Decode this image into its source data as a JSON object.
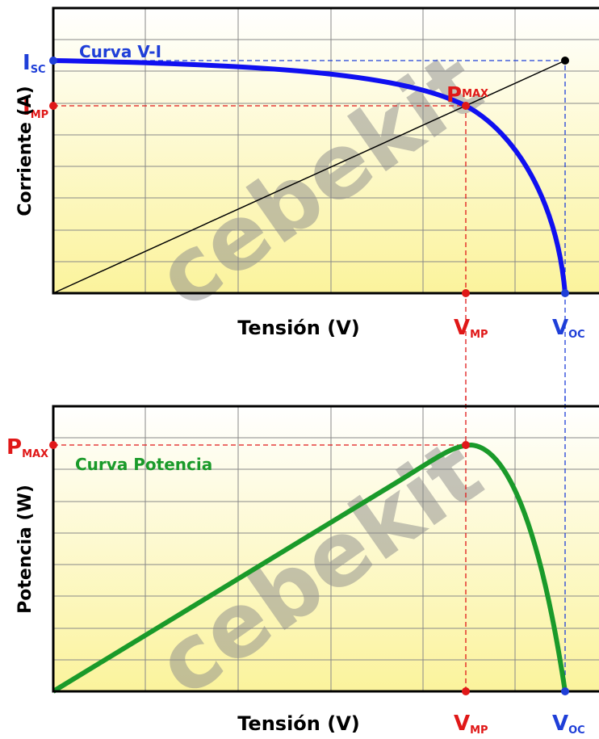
{
  "watermark": "cebekit",
  "top_chart": {
    "curve_label": "Curva V-I",
    "y_axis_label": "Corriente (A)",
    "x_axis_label": "Tensión (V)",
    "isc": {
      "main": "I",
      "sub": "SC"
    },
    "imp": {
      "main": "I",
      "sub": "MP"
    },
    "pmax": {
      "main": "P",
      "sub": "MAX"
    },
    "vmp": {
      "main": "V",
      "sub": "MP"
    },
    "voc": {
      "main": "V",
      "sub": "OC"
    }
  },
  "bottom_chart": {
    "curve_label": "Curva Potencia",
    "y_axis_label": "Potencia (W)",
    "x_axis_label": "Tensión (V)",
    "pmax": {
      "main": "P",
      "sub": "MAX"
    },
    "vmp": {
      "main": "V",
      "sub": "MP"
    },
    "voc": {
      "main": "V",
      "sub": "OC"
    }
  }
}
